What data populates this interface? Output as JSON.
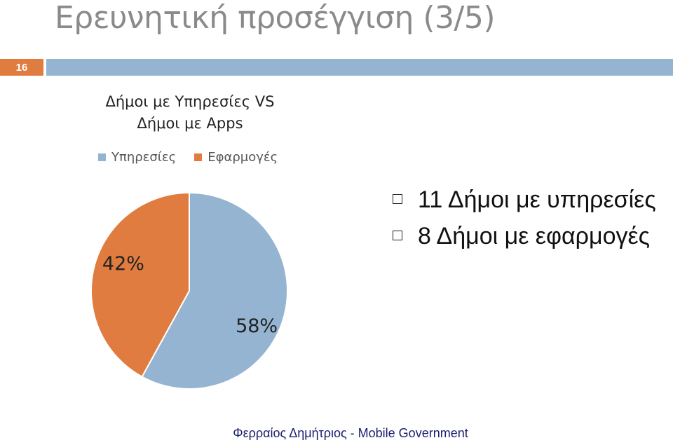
{
  "slide": {
    "title": "Ερευνητική προσέγγιση (3/5)",
    "page_number": "16",
    "footer": "Φερραίος Δημήτριος - Mobile Government",
    "colors": {
      "accent_orange": "#e07c3f",
      "accent_blue": "#95b4d1"
    }
  },
  "chart_data": {
    "type": "pie",
    "title_lines": [
      "Δήμοι με Υπηρεσίες VS",
      "Δήμοι με Apps"
    ],
    "legend_position": "top",
    "series": [
      {
        "name": "Υπηρεσίες",
        "value": 58,
        "label": "58%",
        "color": "#95b4d1"
      },
      {
        "name": "Εφαρμογές",
        "value": 42,
        "label": "42%",
        "color": "#e07c3f"
      }
    ]
  },
  "bullets": [
    {
      "text": "11 Δήμοι με υπηρεσίες"
    },
    {
      "text": "8 Δήμοι με εφαρμογές"
    }
  ]
}
